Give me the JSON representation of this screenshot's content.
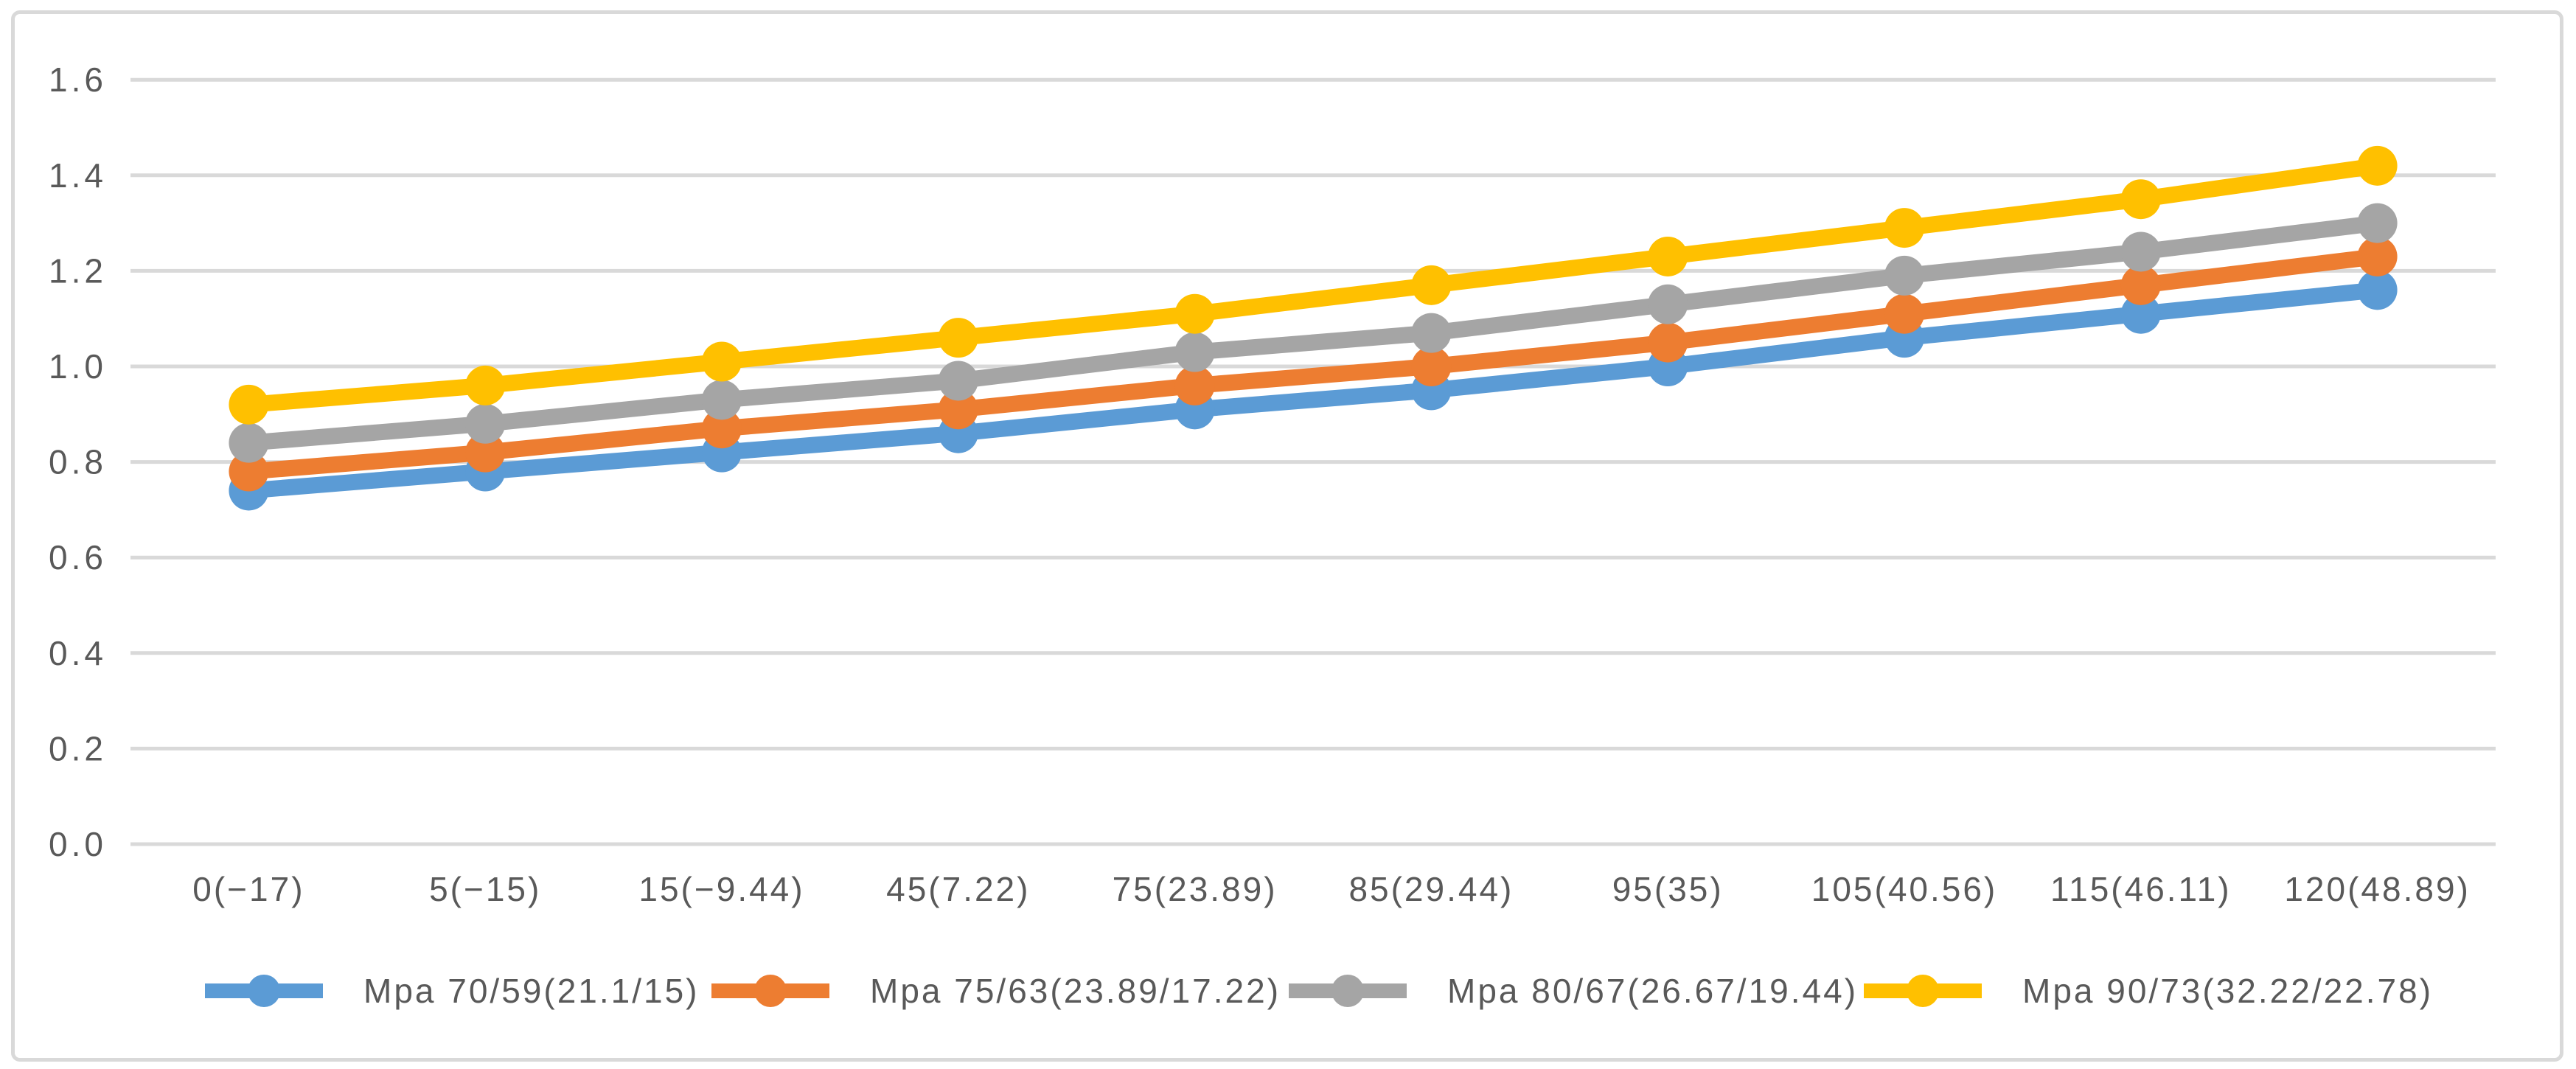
{
  "chart_data": {
    "type": "line",
    "title": "",
    "categories": [
      "0(−17)",
      "5(−15)",
      "15(−9.44)",
      "45(7.22)",
      "75(23.89)",
      "85(29.44)",
      "95(35)",
      "105(40.56)",
      "115(46.11)",
      "120(48.89)"
    ],
    "series": [
      {
        "name": "Mpa 70/59(21.1/15)",
        "color": "#5B9BD5",
        "values": [
          0.74,
          0.78,
          0.82,
          0.86,
          0.91,
          0.95,
          1.0,
          1.06,
          1.11,
          1.16
        ]
      },
      {
        "name": "Mpa 75/63(23.89/17.22)",
        "color": "#ED7D31",
        "values": [
          0.78,
          0.82,
          0.87,
          0.91,
          0.96,
          1.0,
          1.05,
          1.11,
          1.17,
          1.23
        ]
      },
      {
        "name": "Mpa 80/67(26.67/19.44)",
        "color": "#A5A5A5",
        "values": [
          0.84,
          0.88,
          0.93,
          0.97,
          1.03,
          1.07,
          1.13,
          1.19,
          1.24,
          1.3
        ]
      },
      {
        "name": "Mpa 90/73(32.22/22.78)",
        "color": "#FFC000",
        "values": [
          0.92,
          0.96,
          1.01,
          1.06,
          1.11,
          1.17,
          1.23,
          1.29,
          1.35,
          1.42
        ]
      }
    ],
    "y_axis": {
      "min": 0,
      "max": 1.6,
      "step": 0.2,
      "tick_labels": [
        "0.0",
        "0.2",
        "0.4",
        "0.6",
        "0.8",
        "1.0",
        "1.2",
        "1.4",
        "1.6"
      ]
    },
    "x_axis": {
      "tick_labels_visible": true
    },
    "grid": true,
    "legend_position": "bottom",
    "marker_style": "circle",
    "styles": {
      "background": "#FFFFFF",
      "text_color": "#595959",
      "grid_color": "#D9D9D9",
      "border_color": "#D9D9D9"
    }
  }
}
